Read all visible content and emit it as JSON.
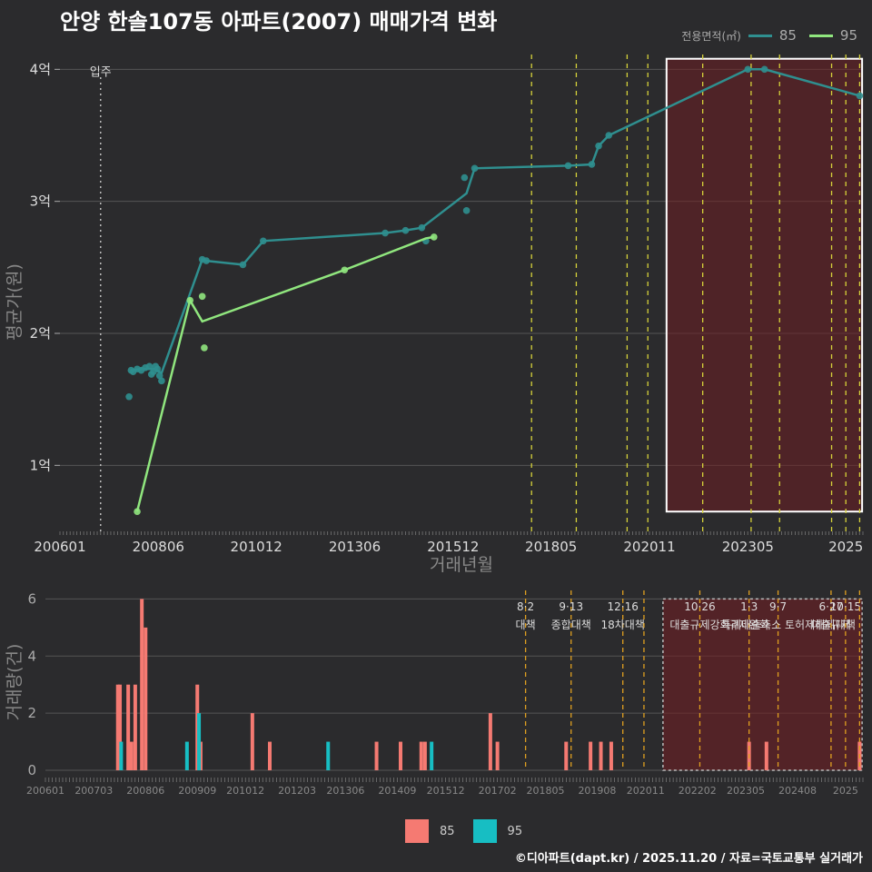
{
  "page": {
    "title": "안양 한솔107동 아파트(2007) 매매가격 변화",
    "footer": "©디아파트(dapt.kr) / 2025.11.20 / 자료=국토교통부 실거래가"
  },
  "legend": {
    "title": "전용면적(㎡)",
    "items": [
      {
        "label": "85",
        "line_color": "#2f8f8f",
        "bar_color": "#f57a72"
      },
      {
        "label": "95",
        "line_color": "#90e67e",
        "bar_color": "#17bec3"
      }
    ]
  },
  "chart_data": [
    {
      "type": "line",
      "name": "price",
      "title": "안양 한솔107동 아파트(2007) 매매가격 변화",
      "xlabel": "거래년월",
      "ylabel": "평균가(원)",
      "xlim": [
        2006.0,
        2025.75
      ],
      "ylim": [
        0.5,
        4.25
      ],
      "x_ticks": [
        {
          "x": 2006.0,
          "label": "200601"
        },
        {
          "x": 2008.42,
          "label": "200806"
        },
        {
          "x": 2010.83,
          "label": "201012"
        },
        {
          "x": 2013.25,
          "label": "201306"
        },
        {
          "x": 2015.67,
          "label": "201512"
        },
        {
          "x": 2018.08,
          "label": "201805"
        },
        {
          "x": 2020.5,
          "label": "202011"
        },
        {
          "x": 2022.92,
          "label": "202305"
        },
        {
          "x": 2025.33,
          "label": "2025"
        }
      ],
      "y_ticks": [
        {
          "y": 1,
          "label": "1억"
        },
        {
          "y": 2,
          "label": "2억"
        },
        {
          "y": 3,
          "label": "3억"
        },
        {
          "y": 4,
          "label": "4억"
        }
      ],
      "move_in": {
        "x": 2007.0,
        "label": "입주"
      },
      "series": [
        {
          "name": "85",
          "line": [
            [
              2007.75,
              1.72
            ],
            [
              2008.0,
              1.73
            ],
            [
              2008.33,
              1.73
            ],
            [
              2008.5,
              1.7
            ],
            [
              2009.5,
              2.56
            ],
            [
              2009.6,
              2.55
            ],
            [
              2010.5,
              2.52
            ],
            [
              2011.0,
              2.7
            ],
            [
              2014.0,
              2.76
            ],
            [
              2014.5,
              2.78
            ],
            [
              2014.9,
              2.8
            ],
            [
              2016.0,
              3.06
            ],
            [
              2016.2,
              3.25
            ],
            [
              2018.5,
              3.27
            ],
            [
              2019.08,
              3.28
            ],
            [
              2019.25,
              3.42
            ],
            [
              2019.5,
              3.5
            ],
            [
              2022.92,
              4.0
            ],
            [
              2023.33,
              4.0
            ],
            [
              2025.67,
              3.8
            ]
          ],
          "points": [
            [
              2007.7,
              1.52
            ],
            [
              2007.75,
              1.72
            ],
            [
              2007.8,
              1.71
            ],
            [
              2007.9,
              1.73
            ],
            [
              2008.0,
              1.72
            ],
            [
              2008.1,
              1.74
            ],
            [
              2008.2,
              1.75
            ],
            [
              2008.25,
              1.69
            ],
            [
              2008.3,
              1.71
            ],
            [
              2008.35,
              1.75
            ],
            [
              2008.4,
              1.73
            ],
            [
              2008.45,
              1.68
            ],
            [
              2008.5,
              1.64
            ],
            [
              2009.5,
              2.56
            ],
            [
              2009.6,
              2.55
            ],
            [
              2010.5,
              2.52
            ],
            [
              2011.0,
              2.7
            ],
            [
              2014.0,
              2.76
            ],
            [
              2014.5,
              2.78
            ],
            [
              2014.9,
              2.8
            ],
            [
              2015.0,
              2.7
            ],
            [
              2015.95,
              3.18
            ],
            [
              2016.0,
              2.93
            ],
            [
              2016.2,
              3.25
            ],
            [
              2018.5,
              3.27
            ],
            [
              2019.08,
              3.28
            ],
            [
              2019.25,
              3.42
            ],
            [
              2019.5,
              3.5
            ],
            [
              2022.92,
              4.0
            ],
            [
              2023.33,
              4.0
            ],
            [
              2025.67,
              3.8
            ]
          ]
        },
        {
          "name": "95",
          "line": [
            [
              2007.9,
              0.65
            ],
            [
              2009.2,
              2.25
            ],
            [
              2009.5,
              2.09
            ],
            [
              2013.0,
              2.48
            ],
            [
              2015.0,
              2.72
            ],
            [
              2015.2,
              2.73
            ]
          ],
          "points": [
            [
              2007.9,
              0.65
            ],
            [
              2009.2,
              2.25
            ],
            [
              2009.5,
              2.28
            ],
            [
              2009.55,
              1.89
            ],
            [
              2013.0,
              2.48
            ],
            [
              2015.2,
              2.73
            ]
          ]
        }
      ]
    },
    {
      "type": "bar",
      "name": "volume",
      "xlabel": "",
      "ylabel": "거래량(건)",
      "xlim": [
        2006.0,
        2025.75
      ],
      "ylim": [
        0,
        6.3
      ],
      "x_ticks": [
        {
          "x": 2006.0,
          "label": "200601"
        },
        {
          "x": 2007.17,
          "label": "200703"
        },
        {
          "x": 2008.42,
          "label": "200806"
        },
        {
          "x": 2009.67,
          "label": "200909"
        },
        {
          "x": 2010.83,
          "label": "201012"
        },
        {
          "x": 2012.08,
          "label": "201203"
        },
        {
          "x": 2013.25,
          "label": "201306"
        },
        {
          "x": 2014.5,
          "label": "201409"
        },
        {
          "x": 2015.67,
          "label": "201512"
        },
        {
          "x": 2016.92,
          "label": "201702"
        },
        {
          "x": 2018.08,
          "label": "201805"
        },
        {
          "x": 2019.33,
          "label": "201908"
        },
        {
          "x": 2020.5,
          "label": "202011"
        },
        {
          "x": 2021.75,
          "label": "202202"
        },
        {
          "x": 2022.92,
          "label": "202305"
        },
        {
          "x": 2024.17,
          "label": "202408"
        },
        {
          "x": 2025.33,
          "label": "2025"
        }
      ],
      "y_ticks": [
        {
          "y": 0,
          "label": "0"
        },
        {
          "y": 2,
          "label": "2"
        },
        {
          "y": 4,
          "label": "4"
        },
        {
          "y": 6,
          "label": "6"
        }
      ],
      "series": [
        {
          "name": "85",
          "bars": [
            [
              2007.75,
              3
            ],
            [
              2007.8,
              3
            ],
            [
              2008.0,
              3
            ],
            [
              2008.08,
              1
            ],
            [
              2008.17,
              3
            ],
            [
              2008.33,
              6
            ],
            [
              2008.42,
              5
            ],
            [
              2009.67,
              3
            ],
            [
              2009.75,
              1
            ],
            [
              2011.0,
              2
            ],
            [
              2011.42,
              1
            ],
            [
              2014.0,
              1
            ],
            [
              2014.58,
              1
            ],
            [
              2015.08,
              1
            ],
            [
              2015.17,
              1
            ],
            [
              2016.75,
              2
            ],
            [
              2016.92,
              1
            ],
            [
              2018.58,
              1
            ],
            [
              2019.17,
              1
            ],
            [
              2019.42,
              1
            ],
            [
              2019.67,
              1
            ],
            [
              2023.0,
              1
            ],
            [
              2023.42,
              1
            ],
            [
              2025.67,
              1
            ]
          ]
        },
        {
          "name": "95",
          "bars": [
            [
              2007.83,
              1
            ],
            [
              2009.42,
              1
            ],
            [
              2009.71,
              2
            ],
            [
              2012.83,
              1
            ],
            [
              2015.33,
              1
            ]
          ]
        }
      ]
    }
  ],
  "policies": [
    {
      "x": 2017.6,
      "date": "8·2",
      "label": "대책"
    },
    {
      "x": 2018.7,
      "date": "9·13",
      "label": "종합대책"
    },
    {
      "x": 2019.95,
      "date": "12·16",
      "label": "18차대책"
    },
    {
      "x": 2020.46,
      "date": "",
      "label": ""
    },
    {
      "x": 2021.81,
      "date": "10·26",
      "label": "대출규제강화"
    },
    {
      "x": 2023.0,
      "date": "1·3",
      "label": "규제완화"
    },
    {
      "x": 2023.7,
      "date": "9·7",
      "label": "특례대출축소 토허제해제"
    },
    {
      "x": 2024.98,
      "date": "6·27",
      "label": "대출규제"
    },
    {
      "x": 2025.33,
      "date": "10·15",
      "label": "대책"
    },
    {
      "x": 2025.67,
      "date": "",
      "label": ""
    }
  ],
  "highlight": {
    "from": 2020.92,
    "to": 2025.73
  }
}
